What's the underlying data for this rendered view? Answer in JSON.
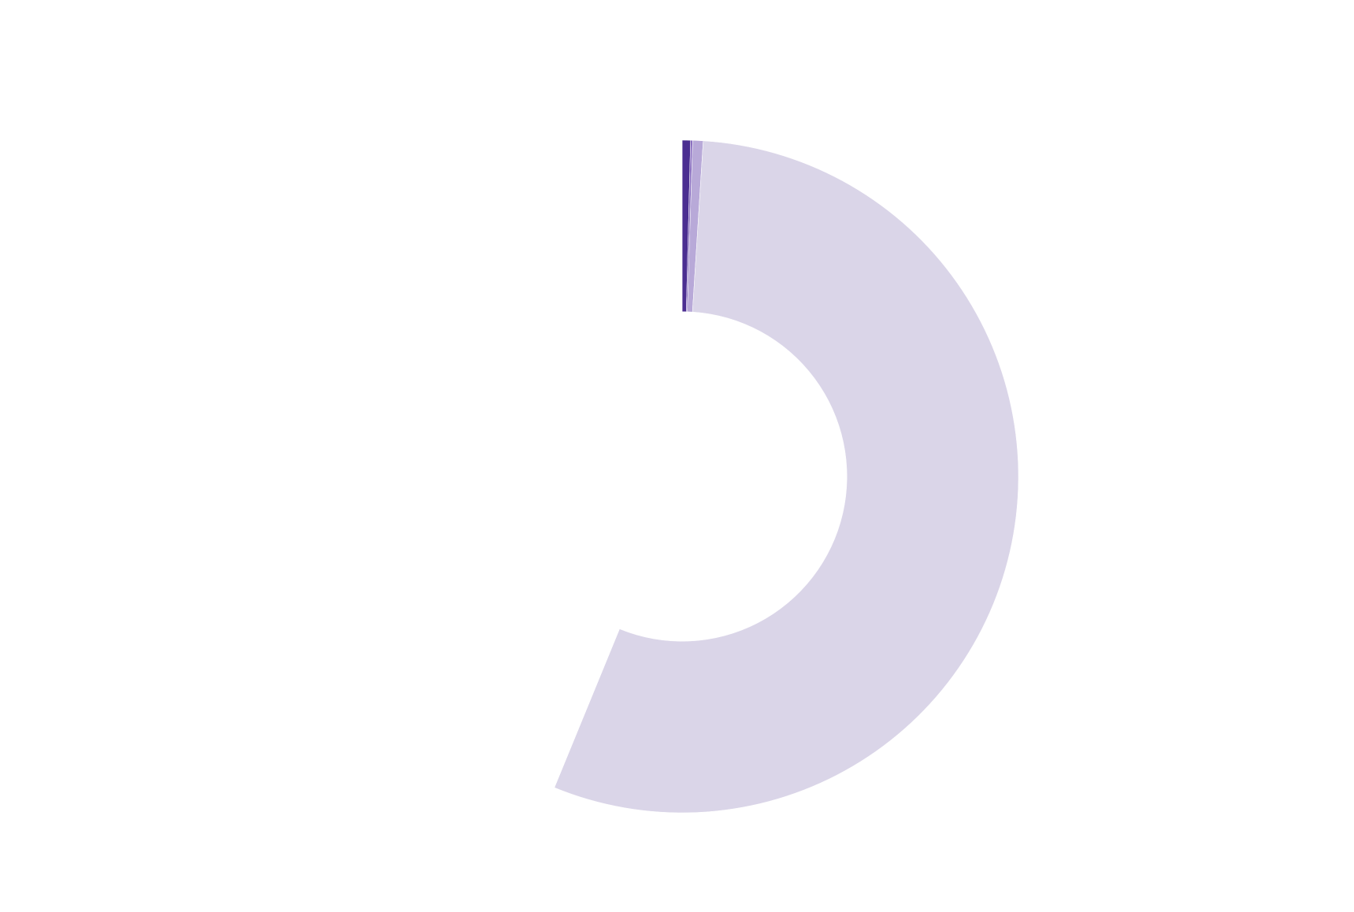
{
  "chart_data": {
    "type": "pie",
    "values": [
      0.4,
      0.1,
      0.5,
      55.2,
      43.8
    ],
    "colors": [
      "#4b2e91",
      "#8a6fc0",
      "#b8a9d8",
      "#dad5e8",
      "#ffffff"
    ],
    "hole": 0.49
  }
}
